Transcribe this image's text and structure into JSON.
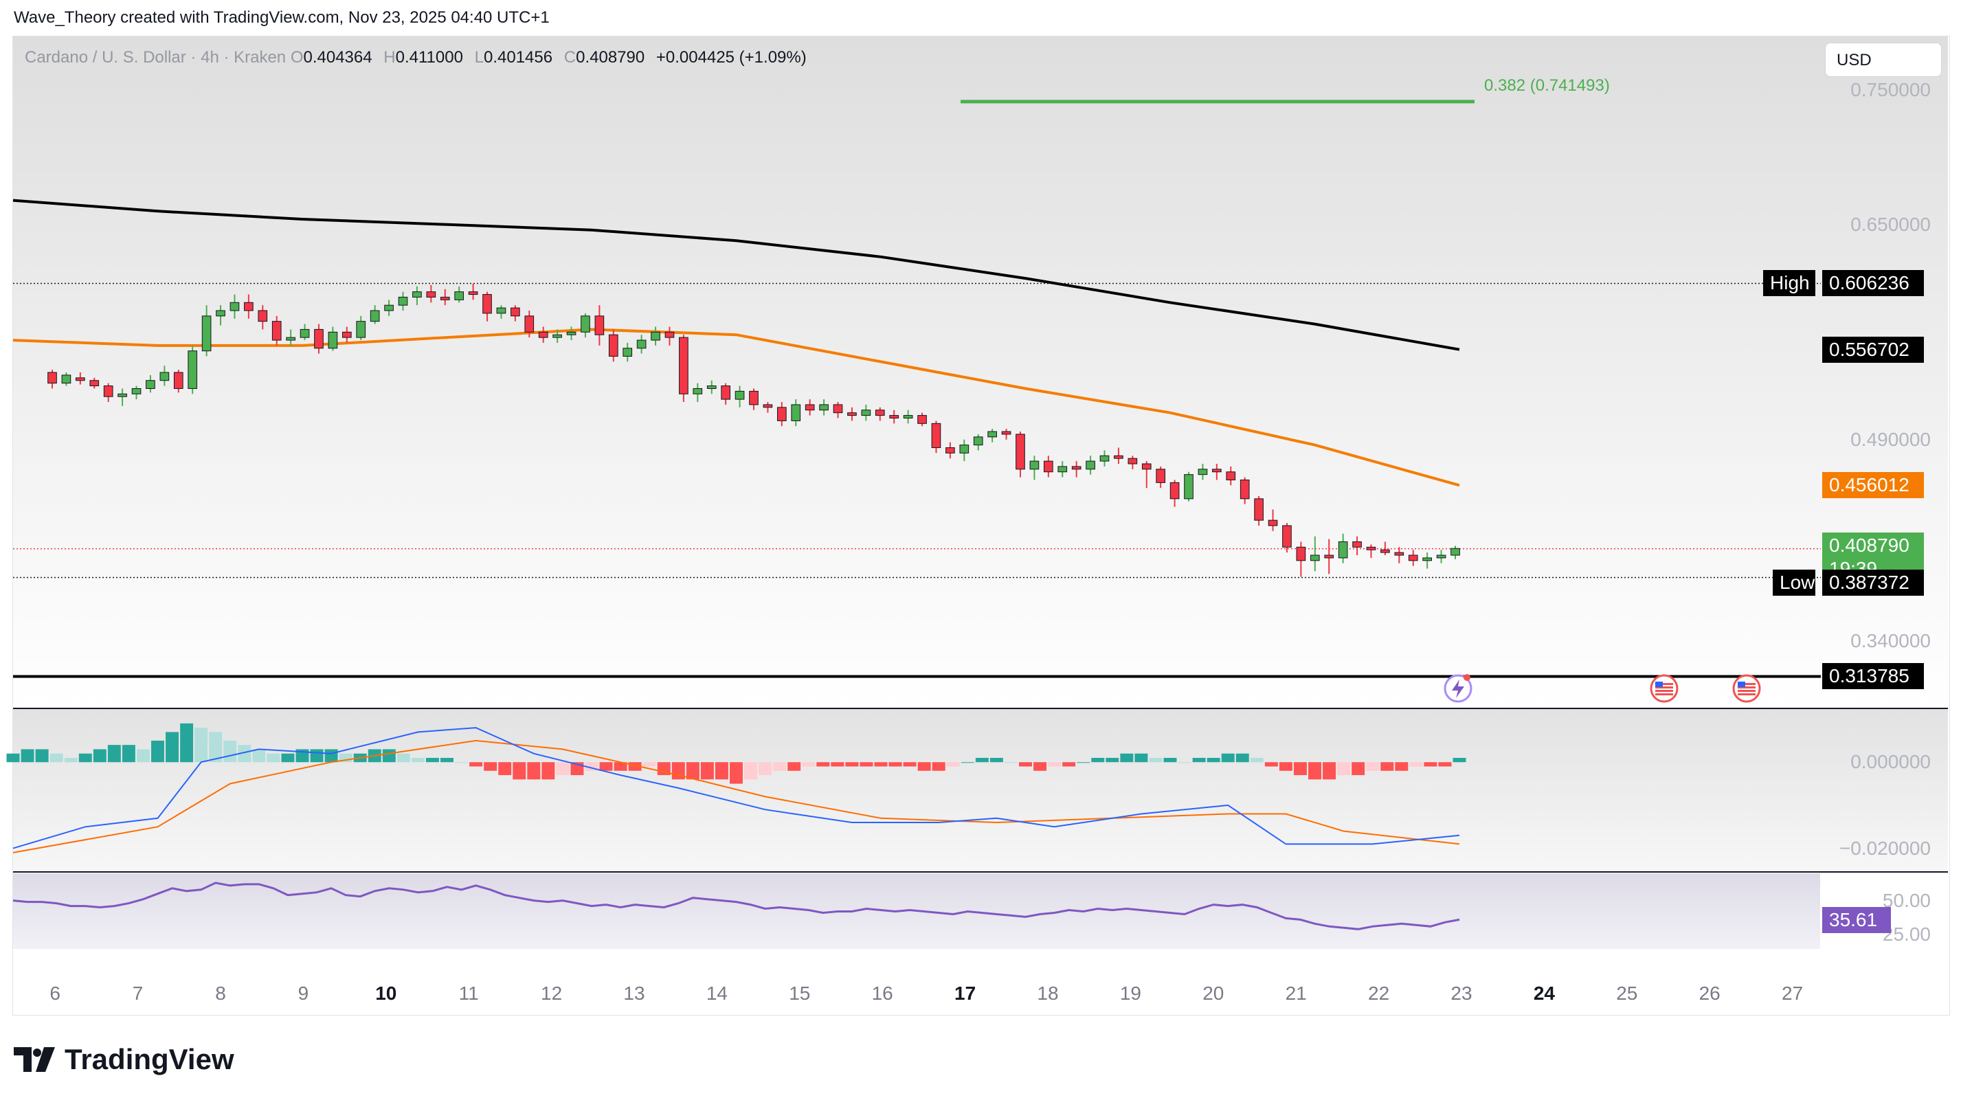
{
  "credit": "Wave_Theory created with TradingView.com, Nov 23, 2025 04:40 UTC+1",
  "symbol": {
    "name": "Cardano / U. S. Dollar · 4h · Kraken",
    "o_label": "O",
    "open": "0.404364",
    "h_label": "H",
    "high": "0.411000",
    "l_label": "L",
    "low": "0.401456",
    "c_label": "C",
    "close": "0.408790",
    "change": "+0.004425 (+1.09%)"
  },
  "currency_button": "USD",
  "brand": "TradingView",
  "colors": {
    "up": "#26a69a",
    "down": "#ef5350",
    "candle_up": "#4caf50",
    "candle_down": "#f23645",
    "ema_orange": "#f57c00",
    "ema_black": "#000000",
    "fib_green": "#4caf50",
    "macd_line": "#2962ff",
    "signal_line": "#ff6d00",
    "rsi_line": "#7e57c2"
  },
  "chart_data": [
    {
      "type": "candlestick",
      "pane": "price",
      "x_ticks": [
        "6",
        "7",
        "8",
        "9",
        "10",
        "11",
        "12",
        "13",
        "14",
        "15",
        "16",
        "17",
        "18",
        "19",
        "20",
        "21",
        "22",
        "23",
        "24",
        "25",
        "26",
        "27"
      ],
      "bold_ticks": [
        "10",
        "17",
        "24"
      ],
      "y_ticks": [
        "0.750000",
        "0.650000",
        "0.490000",
        "0.340000"
      ],
      "y_range": [
        0.29,
        0.79
      ],
      "last_price": "0.408790",
      "countdown": "19:39",
      "levels": {
        "high": {
          "label": "High",
          "value": "0.606236"
        },
        "low": {
          "label": "Low",
          "value": "0.387372"
        },
        "ema_slow": "0.556702",
        "ema_fast": "0.456012",
        "support": "0.313785"
      },
      "fib": {
        "label": "0.382 (0.741493)",
        "value": 0.741493
      },
      "candles": [
        [
          0.54,
          0.542,
          0.528,
          0.532
        ],
        [
          0.532,
          0.54,
          0.53,
          0.538
        ],
        [
          0.536,
          0.54,
          0.531,
          0.534
        ],
        [
          0.534,
          0.536,
          0.528,
          0.53
        ],
        [
          0.53,
          0.532,
          0.518,
          0.522
        ],
        [
          0.522,
          0.528,
          0.515,
          0.524
        ],
        [
          0.524,
          0.53,
          0.52,
          0.528
        ],
        [
          0.528,
          0.538,
          0.525,
          0.534
        ],
        [
          0.534,
          0.545,
          0.53,
          0.54
        ],
        [
          0.54,
          0.542,
          0.525,
          0.528
        ],
        [
          0.528,
          0.56,
          0.524,
          0.556
        ],
        [
          0.556,
          0.59,
          0.552,
          0.582
        ],
        [
          0.582,
          0.59,
          0.575,
          0.586
        ],
        [
          0.586,
          0.598,
          0.58,
          0.592
        ],
        [
          0.592,
          0.598,
          0.58,
          0.586
        ],
        [
          0.586,
          0.59,
          0.572,
          0.578
        ],
        [
          0.578,
          0.582,
          0.56,
          0.564
        ],
        [
          0.564,
          0.572,
          0.56,
          0.566
        ],
        [
          0.566,
          0.576,
          0.564,
          0.572
        ],
        [
          0.572,
          0.576,
          0.554,
          0.558
        ],
        [
          0.558,
          0.574,
          0.556,
          0.57
        ],
        [
          0.57,
          0.574,
          0.562,
          0.566
        ],
        [
          0.566,
          0.582,
          0.564,
          0.578
        ],
        [
          0.578,
          0.59,
          0.576,
          0.586
        ],
        [
          0.586,
          0.594,
          0.582,
          0.59
        ],
        [
          0.59,
          0.6,
          0.586,
          0.596
        ],
        [
          0.596,
          0.604,
          0.59,
          0.6
        ],
        [
          0.6,
          0.605,
          0.592,
          0.596
        ],
        [
          0.596,
          0.602,
          0.59,
          0.594
        ],
        [
          0.594,
          0.604,
          0.592,
          0.6
        ],
        [
          0.6,
          0.606,
          0.594,
          0.598
        ],
        [
          0.598,
          0.6,
          0.578,
          0.584
        ],
        [
          0.584,
          0.59,
          0.58,
          0.588
        ],
        [
          0.588,
          0.59,
          0.578,
          0.582
        ],
        [
          0.582,
          0.586,
          0.566,
          0.57
        ],
        [
          0.57,
          0.574,
          0.562,
          0.566
        ],
        [
          0.566,
          0.572,
          0.562,
          0.568
        ],
        [
          0.568,
          0.574,
          0.564,
          0.57
        ],
        [
          0.57,
          0.584,
          0.566,
          0.582
        ],
        [
          0.582,
          0.59,
          0.56,
          0.568
        ],
        [
          0.568,
          0.572,
          0.548,
          0.552
        ],
        [
          0.552,
          0.562,
          0.548,
          0.558
        ],
        [
          0.558,
          0.568,
          0.554,
          0.564
        ],
        [
          0.564,
          0.574,
          0.56,
          0.57
        ],
        [
          0.57,
          0.574,
          0.56,
          0.566
        ],
        [
          0.566,
          0.568,
          0.518,
          0.524
        ],
        [
          0.524,
          0.532,
          0.518,
          0.528
        ],
        [
          0.528,
          0.534,
          0.524,
          0.53
        ],
        [
          0.53,
          0.532,
          0.516,
          0.52
        ],
        [
          0.52,
          0.53,
          0.514,
          0.526
        ],
        [
          0.526,
          0.528,
          0.512,
          0.516
        ],
        [
          0.516,
          0.518,
          0.51,
          0.514
        ],
        [
          0.514,
          0.518,
          0.5,
          0.504
        ],
        [
          0.504,
          0.52,
          0.5,
          0.516
        ],
        [
          0.516,
          0.52,
          0.508,
          0.512
        ],
        [
          0.512,
          0.52,
          0.508,
          0.516
        ],
        [
          0.516,
          0.518,
          0.506,
          0.51
        ],
        [
          0.51,
          0.514,
          0.504,
          0.508
        ],
        [
          0.508,
          0.516,
          0.504,
          0.512
        ],
        [
          0.512,
          0.514,
          0.504,
          0.508
        ],
        [
          0.508,
          0.512,
          0.502,
          0.506
        ],
        [
          0.506,
          0.512,
          0.502,
          0.508
        ],
        [
          0.508,
          0.51,
          0.5,
          0.502
        ],
        [
          0.502,
          0.504,
          0.48,
          0.484
        ],
        [
          0.484,
          0.488,
          0.476,
          0.48
        ],
        [
          0.48,
          0.49,
          0.474,
          0.486
        ],
        [
          0.486,
          0.494,
          0.482,
          0.492
        ],
        [
          0.492,
          0.498,
          0.488,
          0.496
        ],
        [
          0.496,
          0.498,
          0.49,
          0.494
        ],
        [
          0.494,
          0.496,
          0.462,
          0.468
        ],
        [
          0.468,
          0.478,
          0.46,
          0.474
        ],
        [
          0.474,
          0.478,
          0.462,
          0.466
        ],
        [
          0.466,
          0.474,
          0.462,
          0.47
        ],
        [
          0.47,
          0.474,
          0.462,
          0.468
        ],
        [
          0.468,
          0.478,
          0.464,
          0.474
        ],
        [
          0.474,
          0.482,
          0.47,
          0.478
        ],
        [
          0.478,
          0.484,
          0.472,
          0.476
        ],
        [
          0.476,
          0.478,
          0.468,
          0.472
        ],
        [
          0.472,
          0.474,
          0.454,
          0.468
        ],
        [
          0.468,
          0.47,
          0.454,
          0.458
        ],
        [
          0.458,
          0.46,
          0.44,
          0.446
        ],
        [
          0.446,
          0.466,
          0.444,
          0.464
        ],
        [
          0.464,
          0.472,
          0.46,
          0.468
        ],
        [
          0.468,
          0.472,
          0.46,
          0.466
        ],
        [
          0.466,
          0.47,
          0.456,
          0.46
        ],
        [
          0.46,
          0.462,
          0.442,
          0.446
        ],
        [
          0.446,
          0.448,
          0.426,
          0.43
        ],
        [
          0.43,
          0.438,
          0.422,
          0.426
        ],
        [
          0.426,
          0.428,
          0.406,
          0.41
        ],
        [
          0.41,
          0.414,
          0.388,
          0.4
        ],
        [
          0.4,
          0.418,
          0.392,
          0.404
        ],
        [
          0.404,
          0.416,
          0.39,
          0.402
        ],
        [
          0.402,
          0.42,
          0.398,
          0.414
        ],
        [
          0.414,
          0.418,
          0.404,
          0.41
        ],
        [
          0.41,
          0.412,
          0.402,
          0.408
        ],
        [
          0.408,
          0.414,
          0.404,
          0.406
        ],
        [
          0.406,
          0.41,
          0.398,
          0.404
        ],
        [
          0.404,
          0.408,
          0.396,
          0.4
        ],
        [
          0.4,
          0.406,
          0.394,
          0.402
        ],
        [
          0.402,
          0.408,
          0.398,
          0.404
        ],
        [
          0.404,
          0.411,
          0.401,
          0.409
        ]
      ],
      "ema_fast_points": [
        [
          0,
          0.564
        ],
        [
          0.1,
          0.56
        ],
        [
          0.2,
          0.56
        ],
        [
          0.3,
          0.566
        ],
        [
          0.4,
          0.572
        ],
        [
          0.5,
          0.568
        ],
        [
          0.6,
          0.548
        ],
        [
          0.7,
          0.528
        ],
        [
          0.8,
          0.51
        ],
        [
          0.9,
          0.486
        ],
        [
          1.0,
          0.456
        ]
      ],
      "ema_slow_points": [
        [
          0,
          0.668
        ],
        [
          0.1,
          0.66
        ],
        [
          0.2,
          0.654
        ],
        [
          0.3,
          0.65
        ],
        [
          0.4,
          0.646
        ],
        [
          0.5,
          0.638
        ],
        [
          0.6,
          0.626
        ],
        [
          0.7,
          0.61
        ],
        [
          0.8,
          0.592
        ],
        [
          0.9,
          0.576
        ],
        [
          1.0,
          0.557
        ]
      ]
    },
    {
      "type": "macd",
      "pane": "macd",
      "y_ticks": [
        "0.000000",
        "−0.020000"
      ],
      "y_range": [
        -0.025,
        0.012
      ],
      "histogram": [
        0.002,
        0.003,
        0.003,
        0.002,
        0.001,
        0.002,
        0.003,
        0.004,
        0.004,
        0.003,
        0.005,
        0.007,
        0.009,
        0.008,
        0.007,
        0.005,
        0.004,
        0.003,
        0.002,
        0.002,
        0.003,
        0.003,
        0.003,
        0.002,
        0.002,
        0.003,
        0.003,
        0.002,
        0.001,
        0.001,
        0.001,
        0.0,
        -0.001,
        -0.002,
        -0.003,
        -0.004,
        -0.004,
        -0.004,
        -0.003,
        -0.003,
        -0.002,
        -0.002,
        -0.002,
        -0.002,
        -0.001,
        -0.003,
        -0.004,
        -0.004,
        -0.004,
        -0.004,
        -0.005,
        -0.004,
        -0.003,
        -0.002,
        -0.002,
        -0.001,
        -0.001,
        -0.001,
        -0.001,
        -0.001,
        -0.001,
        -0.001,
        -0.001,
        -0.002,
        -0.002,
        -0.001,
        0.0,
        0.001,
        0.001,
        0.0,
        -0.001,
        -0.002,
        -0.001,
        -0.001,
        0.0,
        0.001,
        0.001,
        0.002,
        0.002,
        0.001,
        0.001,
        0.0,
        0.001,
        0.001,
        0.002,
        0.002,
        0.001,
        -0.001,
        -0.002,
        -0.003,
        -0.004,
        -0.004,
        -0.003,
        -0.003,
        -0.002,
        -0.002,
        -0.002,
        -0.001,
        -0.001,
        -0.001,
        0.001
      ],
      "macd_points": [
        [
          0,
          -0.02
        ],
        [
          0.05,
          -0.015
        ],
        [
          0.1,
          -0.013
        ],
        [
          0.13,
          0.0
        ],
        [
          0.17,
          0.003
        ],
        [
          0.22,
          0.002
        ],
        [
          0.28,
          0.007
        ],
        [
          0.32,
          0.008
        ],
        [
          0.36,
          0.002
        ],
        [
          0.42,
          -0.003
        ],
        [
          0.46,
          -0.006
        ],
        [
          0.52,
          -0.011
        ],
        [
          0.58,
          -0.014
        ],
        [
          0.64,
          -0.014
        ],
        [
          0.68,
          -0.013
        ],
        [
          0.72,
          -0.015
        ],
        [
          0.78,
          -0.012
        ],
        [
          0.84,
          -0.01
        ],
        [
          0.88,
          -0.019
        ],
        [
          0.94,
          -0.019
        ],
        [
          1.0,
          -0.017
        ]
      ],
      "signal_points": [
        [
          0,
          -0.021
        ],
        [
          0.1,
          -0.015
        ],
        [
          0.15,
          -0.005
        ],
        [
          0.22,
          0.0
        ],
        [
          0.32,
          0.005
        ],
        [
          0.38,
          0.003
        ],
        [
          0.46,
          -0.003
        ],
        [
          0.52,
          -0.008
        ],
        [
          0.6,
          -0.013
        ],
        [
          0.68,
          -0.014
        ],
        [
          0.76,
          -0.013
        ],
        [
          0.84,
          -0.012
        ],
        [
          0.88,
          -0.012
        ],
        [
          0.92,
          -0.016
        ],
        [
          1.0,
          -0.019
        ]
      ]
    },
    {
      "type": "line",
      "pane": "rsi",
      "y_ticks": [
        "50.00",
        "25.00"
      ],
      "y_range": [
        15,
        70
      ],
      "current": "35.61",
      "values": [
        50,
        49,
        49,
        48,
        46,
        46,
        45,
        46,
        48,
        51,
        55,
        59,
        57,
        58,
        63,
        61,
        62,
        62,
        59,
        54,
        55,
        56,
        59,
        54,
        53,
        57,
        59,
        58,
        56,
        57,
        60,
        58,
        61,
        58,
        54,
        52,
        50,
        49,
        50,
        48,
        46,
        47,
        45,
        47,
        46,
        45,
        48,
        52,
        51,
        50,
        49,
        47,
        44,
        45,
        44,
        43,
        41,
        42,
        42,
        44,
        43,
        42,
        43,
        42,
        41,
        40,
        42,
        41,
        40,
        39,
        38,
        40,
        41,
        43,
        42,
        44,
        43,
        44,
        43,
        42,
        41,
        40,
        44,
        47,
        46,
        47,
        45,
        41,
        37,
        36,
        33,
        31,
        30,
        29,
        31,
        32,
        33,
        32,
        31,
        34,
        36
      ]
    }
  ],
  "news_markers": [
    "bolt-event",
    "us-flag-event",
    "us-flag-event"
  ]
}
